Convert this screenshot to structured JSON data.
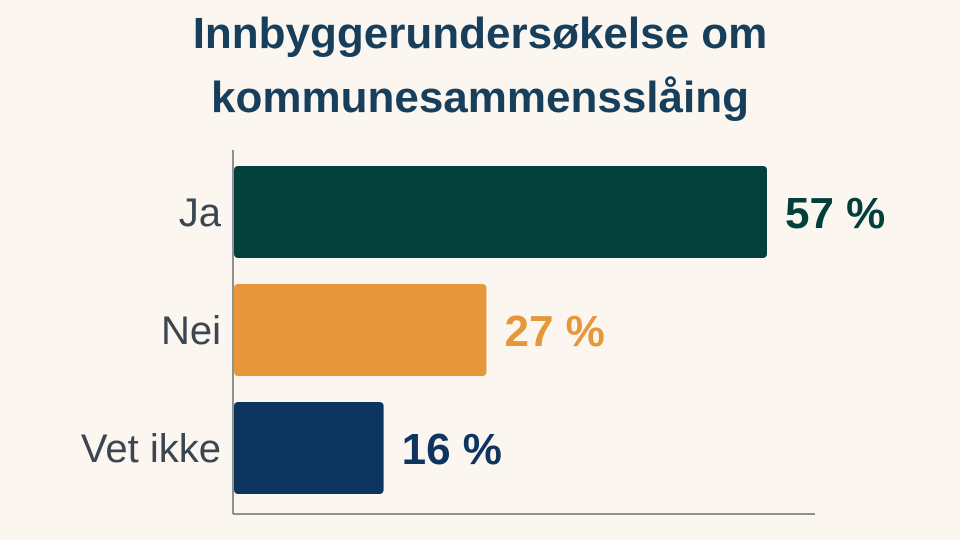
{
  "title_lines": [
    "Innbyggerundersøkelse om",
    "kommunesammensslåing"
  ],
  "chart_data": {
    "type": "bar",
    "orientation": "horizontal",
    "title": "Innbyggerundersøkelse om kommunesammensslåing",
    "xlabel": "",
    "ylabel": "",
    "categories": [
      "Ja",
      "Nei",
      "Vet ikke"
    ],
    "values": [
      57,
      27,
      16
    ],
    "value_labels": [
      "57 %",
      "27 %",
      "16 %"
    ],
    "colors": [
      "#033f3b",
      "#e5973a",
      "#0d3560"
    ],
    "xlim": [
      0,
      62
    ],
    "grid": false
  }
}
